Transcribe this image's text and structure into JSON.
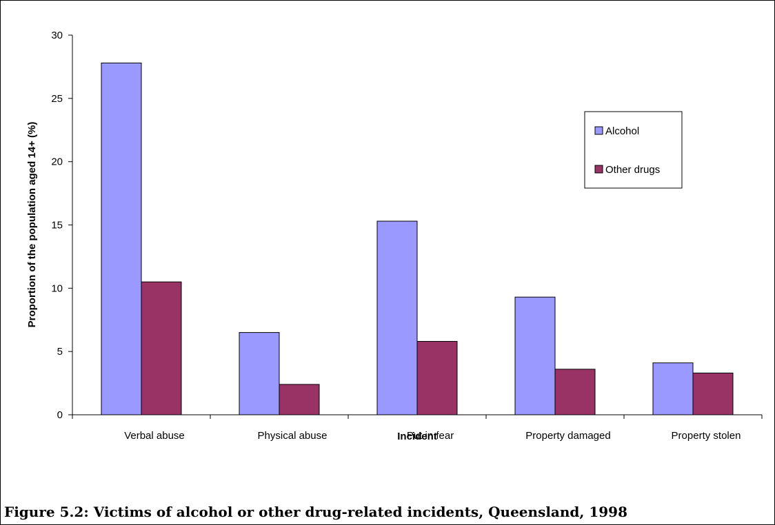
{
  "figure": {
    "caption": "Figure 5.2: Victims of alcohol or other drug-related incidents, Queensland, 1998"
  },
  "chart_data": {
    "type": "bar",
    "categories": [
      "Verbal abuse",
      "Physical abuse",
      "Put in fear",
      "Property damaged",
      "Property stolen"
    ],
    "series": [
      {
        "name": "Alcohol",
        "color": "#9999FF",
        "values": [
          27.8,
          6.5,
          15.3,
          9.3,
          4.1
        ]
      },
      {
        "name": "Other drugs",
        "color": "#993366",
        "values": [
          10.5,
          2.4,
          5.8,
          3.6,
          3.3
        ]
      }
    ],
    "title": "",
    "xlabel": "Incident",
    "ylabel": "Proportion of the population aged 14+ (%)",
    "ylim": [
      0,
      30
    ],
    "yticks": [
      0,
      5,
      10,
      15,
      20,
      25,
      30
    ],
    "grid": false,
    "legend_position": "right"
  }
}
